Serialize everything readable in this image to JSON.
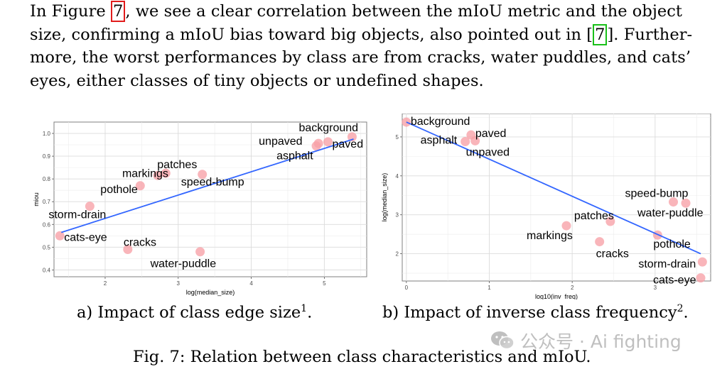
{
  "paragraph": {
    "line1_pre": "In Figure ",
    "line1_ref": "7",
    "line1_post": ", we see a clear correlation between the mIoU metric and the object",
    "line2_pre": "size, confirming a mIoU bias toward big objects, also pointed out in [",
    "line2_ref": "7",
    "line2_post": "]. Further-",
    "line3": "more, the worst performances by class are from cracks, water puddles, and cats’",
    "line4": "eyes, either classes of tiny objects or undefined shapes."
  },
  "captions": {
    "a_text": "a) Impact of class edge size",
    "a_sup": "1",
    "a_end": ".",
    "b_text": "b) Impact of inverse class frequency",
    "b_sup": "2",
    "b_end": ".",
    "figure": "Fig. 7: Relation between class characteristics and mIoU."
  },
  "watermark": {
    "text": "公众号 · Ai fighting",
    "icon": "wechat-icon"
  },
  "chart_data": [
    {
      "type": "scatter",
      "xlabel": "log(median_size)",
      "ylabel": "miou",
      "xlim": [
        1.3,
        5.58
      ],
      "ylim": [
        0.37,
        1.05
      ],
      "xticks": [
        2,
        3,
        4,
        5
      ],
      "yticks": [
        0.4,
        0.5,
        0.6,
        0.7,
        0.8,
        0.9,
        1.0
      ],
      "ytick_labels": [
        "0.4",
        "0.5",
        "0.6",
        "0.7",
        "0.8",
        "0.9",
        "1.0"
      ],
      "grid": true,
      "point_color": "#f7a0a6",
      "line_color": "#3366ff",
      "trend": [
        [
          1.4,
          0.565
        ],
        [
          5.4,
          0.975
        ]
      ],
      "points": [
        {
          "label": "background",
          "x": 5.38,
          "y": 0.985
        },
        {
          "label": "paved",
          "x": 5.05,
          "y": 0.963
        },
        {
          "label": "unpaved",
          "x": 4.92,
          "y": 0.956
        },
        {
          "label": "asphalt",
          "x": 4.89,
          "y": 0.945
        },
        {
          "label": "patches",
          "x": 2.83,
          "y": 0.825
        },
        {
          "label": "markings",
          "x": 2.72,
          "y": 0.815
        },
        {
          "label": "speed-bump",
          "x": 3.33,
          "y": 0.82
        },
        {
          "label": "pothole",
          "x": 2.48,
          "y": 0.77
        },
        {
          "label": "storm-drain",
          "x": 1.79,
          "y": 0.68
        },
        {
          "label": "cats-eye",
          "x": 1.38,
          "y": 0.55
        },
        {
          "label": "cracks",
          "x": 2.31,
          "y": 0.49
        },
        {
          "label": "water-puddle",
          "x": 3.3,
          "y": 0.48
        }
      ]
    },
    {
      "type": "scatter",
      "xlabel": "log10(inv_freq)",
      "ylabel": "log(median_size)",
      "xlim": [
        -0.05,
        3.67
      ],
      "ylim": [
        1.3,
        5.6
      ],
      "xticks": [
        0,
        1,
        2,
        3
      ],
      "yticks": [
        2,
        3,
        4,
        5
      ],
      "ytick_labels": [
        "2",
        "3",
        "4",
        "5"
      ],
      "grid": true,
      "point_color": "#f7a0a6",
      "line_color": "#3366ff",
      "trend": [
        [
          0.0,
          5.38
        ],
        [
          3.55,
          2.0
        ]
      ],
      "points": [
        {
          "label": "background",
          "x": 0.0,
          "y": 5.38
        },
        {
          "label": "paved",
          "x": 0.78,
          "y": 5.05
        },
        {
          "label": "unpaved",
          "x": 0.83,
          "y": 4.9
        },
        {
          "label": "asphalt",
          "x": 0.71,
          "y": 4.88
        },
        {
          "label": "speed-bump",
          "x": 3.22,
          "y": 3.33
        },
        {
          "label": "water-puddle",
          "x": 3.37,
          "y": 3.3
        },
        {
          "label": "patches",
          "x": 2.46,
          "y": 2.83
        },
        {
          "label": "markings",
          "x": 1.93,
          "y": 2.72
        },
        {
          "label": "pothole",
          "x": 3.03,
          "y": 2.48
        },
        {
          "label": "cracks",
          "x": 2.33,
          "y": 2.31
        },
        {
          "label": "storm-drain",
          "x": 3.57,
          "y": 1.79
        },
        {
          "label": "cats-eye",
          "x": 3.55,
          "y": 1.38
        }
      ]
    }
  ]
}
